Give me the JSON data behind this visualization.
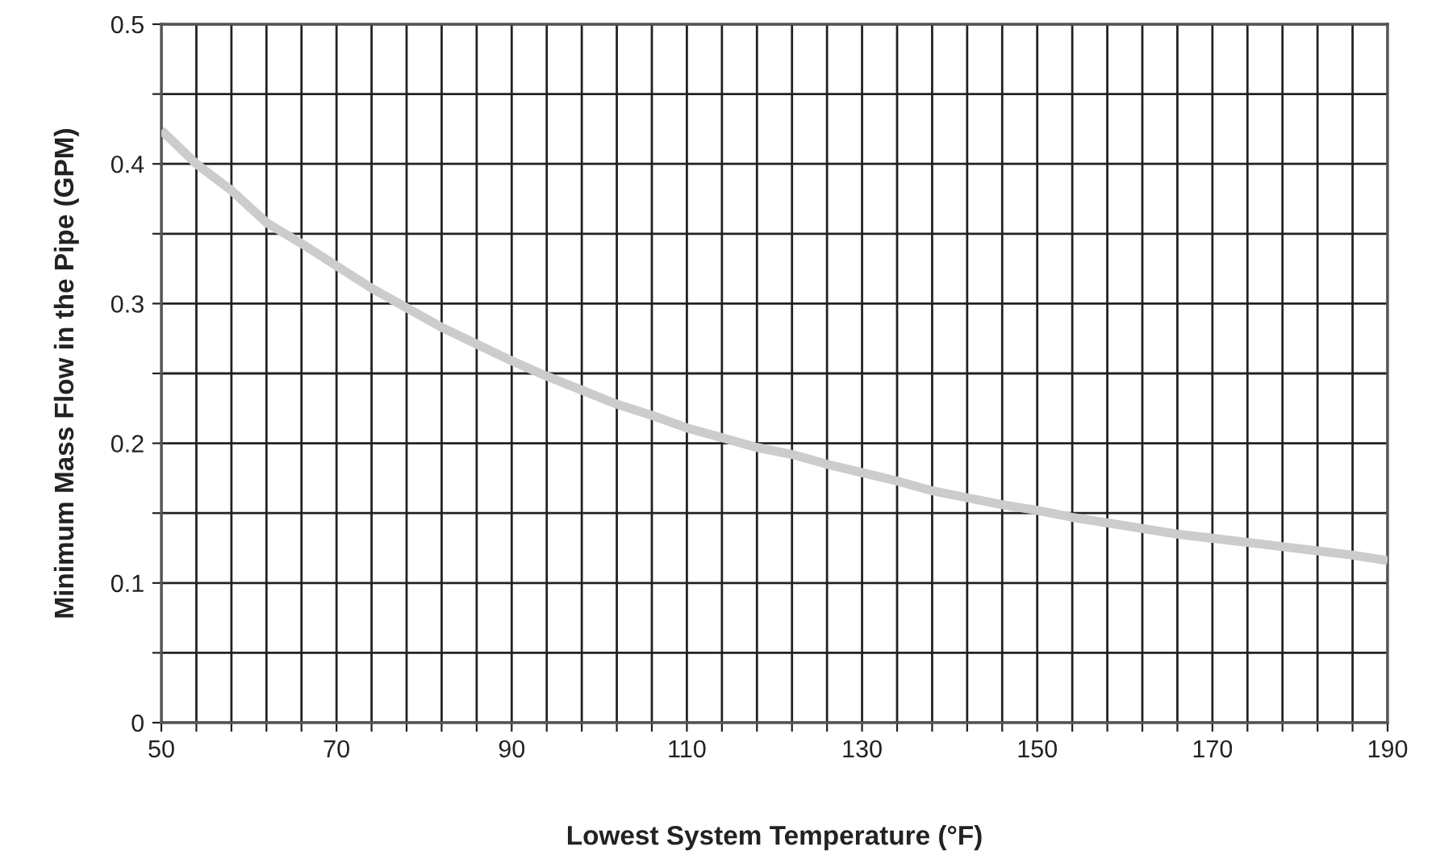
{
  "chart_data": {
    "type": "line",
    "xlabel": "Lowest System Temperature (°F)",
    "ylabel": "Minimum Mass Flow in the Pipe (GPM)",
    "x": [
      50,
      54,
      58,
      62,
      66,
      70,
      74,
      78,
      82,
      86,
      90,
      94,
      98,
      102,
      106,
      110,
      114,
      118,
      122,
      126,
      130,
      134,
      138,
      142,
      146,
      150,
      154,
      158,
      162,
      166,
      170,
      174,
      178,
      182,
      186,
      190
    ],
    "series": [
      {
        "color": "#cccccc",
        "values": [
          0.424,
          0.4,
          0.381,
          0.358,
          0.343,
          0.327,
          0.311,
          0.297,
          0.283,
          0.271,
          0.259,
          0.248,
          0.238,
          0.228,
          0.22,
          0.211,
          0.204,
          0.197,
          0.192,
          0.185,
          0.179,
          0.173,
          0.166,
          0.161,
          0.156,
          0.152,
          0.147,
          0.143,
          0.139,
          0.135,
          0.132,
          0.129,
          0.126,
          0.123,
          0.12,
          0.116
        ]
      }
    ],
    "xlim": [
      50,
      190
    ],
    "ylim": [
      0,
      0.5
    ],
    "xticks": [
      50,
      {
        "value": 54,
        "label": null
      },
      {
        "value": 58,
        "label": null
      },
      {
        "value": 62,
        "label": null
      },
      {
        "value": 66,
        "label": null
      },
      70,
      {
        "value": 74,
        "label": null
      },
      {
        "value": 78,
        "label": null
      },
      {
        "value": 82,
        "label": null
      },
      {
        "value": 86,
        "label": null
      },
      90,
      {
        "value": 94,
        "label": null
      },
      {
        "value": 98,
        "label": null
      },
      {
        "value": 102,
        "label": null
      },
      {
        "value": 106,
        "label": null
      },
      110,
      {
        "value": 114,
        "label": null
      },
      {
        "value": 118,
        "label": null
      },
      {
        "value": 122,
        "label": null
      },
      {
        "value": 126,
        "label": null
      },
      130,
      {
        "value": 134,
        "label": null
      },
      {
        "value": 138,
        "label": null
      },
      {
        "value": 142,
        "label": null
      },
      {
        "value": 146,
        "label": null
      },
      150,
      {
        "value": 154,
        "label": null
      },
      {
        "value": 158,
        "label": null
      },
      {
        "value": 162,
        "label": null
      },
      {
        "value": 166,
        "label": null
      },
      170,
      {
        "value": 174,
        "label": null
      },
      {
        "value": 178,
        "label": null
      },
      {
        "value": 182,
        "label": null
      },
      {
        "value": 186,
        "label": null
      },
      190
    ],
    "yticks": [
      0,
      {
        "value": 0.05,
        "label": null
      },
      0.1,
      {
        "value": 0.15,
        "label": null
      },
      0.2,
      {
        "value": 0.25,
        "label": null
      },
      0.3,
      {
        "value": 0.35,
        "label": null
      },
      0.4,
      {
        "value": 0.45,
        "label": null
      },
      0.5
    ],
    "grid": true,
    "marker": "none",
    "line_style": "solid"
  }
}
